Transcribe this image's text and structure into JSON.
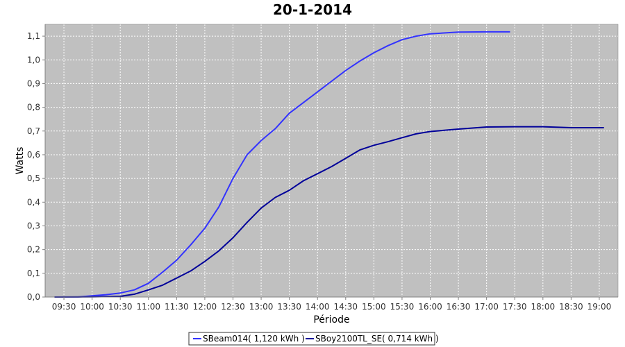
{
  "chart_data": {
    "type": "line",
    "title": "20-1-2014",
    "xlabel": "Période",
    "ylabel": "Watts",
    "xlim": [
      "09:10",
      "19:20"
    ],
    "ylim": [
      0,
      1.15
    ],
    "x_ticks": [
      "09:30",
      "10:00",
      "10:30",
      "11:00",
      "11:30",
      "12:00",
      "12:30",
      "13:00",
      "13:30",
      "14:00",
      "14:30",
      "15:00",
      "15:30",
      "16:00",
      "16:30",
      "17:00",
      "17:30",
      "18:00",
      "18:30",
      "19:00"
    ],
    "y_ticks": [
      "0,0",
      "0,1",
      "0,2",
      "0,3",
      "0,4",
      "0,5",
      "0,6",
      "0,7",
      "0,8",
      "0,9",
      "1,0",
      "1,1"
    ],
    "grid": true,
    "legend_position": "bottom",
    "background_color": "#c0c0c0",
    "series": [
      {
        "name": "SBeam014( 1,120 kWh )",
        "color": "#3333ff",
        "points": [
          [
            "09:20",
            0.0
          ],
          [
            "09:45",
            0.0
          ],
          [
            "10:00",
            0.005
          ],
          [
            "10:15",
            0.01
          ],
          [
            "10:30",
            0.017
          ],
          [
            "10:45",
            0.03
          ],
          [
            "11:00",
            0.058
          ],
          [
            "11:15",
            0.105
          ],
          [
            "11:30",
            0.155
          ],
          [
            "11:45",
            0.22
          ],
          [
            "12:00",
            0.29
          ],
          [
            "12:15",
            0.38
          ],
          [
            "12:30",
            0.5
          ],
          [
            "12:45",
            0.6
          ],
          [
            "13:00",
            0.66
          ],
          [
            "13:15",
            0.71
          ],
          [
            "13:30",
            0.775
          ],
          [
            "13:45",
            0.82
          ],
          [
            "14:00",
            0.865
          ],
          [
            "14:15",
            0.91
          ],
          [
            "14:30",
            0.955
          ],
          [
            "14:45",
            0.995
          ],
          [
            "15:00",
            1.03
          ],
          [
            "15:15",
            1.06
          ],
          [
            "15:30",
            1.085
          ],
          [
            "15:45",
            1.1
          ],
          [
            "16:00",
            1.11
          ],
          [
            "16:30",
            1.117
          ],
          [
            "17:00",
            1.118
          ],
          [
            "17:25",
            1.118
          ]
        ]
      },
      {
        "name": "SBoy2100TL_SE( 0,714 kWh )",
        "color": "#000099",
        "points": [
          [
            "09:20",
            0.0
          ],
          [
            "10:00",
            0.001
          ],
          [
            "10:30",
            0.003
          ],
          [
            "10:45",
            0.012
          ],
          [
            "11:00",
            0.03
          ],
          [
            "11:15",
            0.05
          ],
          [
            "11:30",
            0.08
          ],
          [
            "11:45",
            0.11
          ],
          [
            "12:00",
            0.15
          ],
          [
            "12:15",
            0.195
          ],
          [
            "12:30",
            0.25
          ],
          [
            "12:45",
            0.315
          ],
          [
            "13:00",
            0.375
          ],
          [
            "13:15",
            0.42
          ],
          [
            "13:30",
            0.45
          ],
          [
            "13:45",
            0.49
          ],
          [
            "14:00",
            0.52
          ],
          [
            "14:15",
            0.55
          ],
          [
            "14:30",
            0.585
          ],
          [
            "14:45",
            0.62
          ],
          [
            "15:00",
            0.64
          ],
          [
            "15:15",
            0.655
          ],
          [
            "15:30",
            0.672
          ],
          [
            "15:45",
            0.688
          ],
          [
            "16:00",
            0.698
          ],
          [
            "16:30",
            0.708
          ],
          [
            "17:00",
            0.717
          ],
          [
            "17:30",
            0.718
          ],
          [
            "18:00",
            0.718
          ],
          [
            "18:30",
            0.714
          ],
          [
            "19:05",
            0.714
          ]
        ]
      }
    ]
  }
}
